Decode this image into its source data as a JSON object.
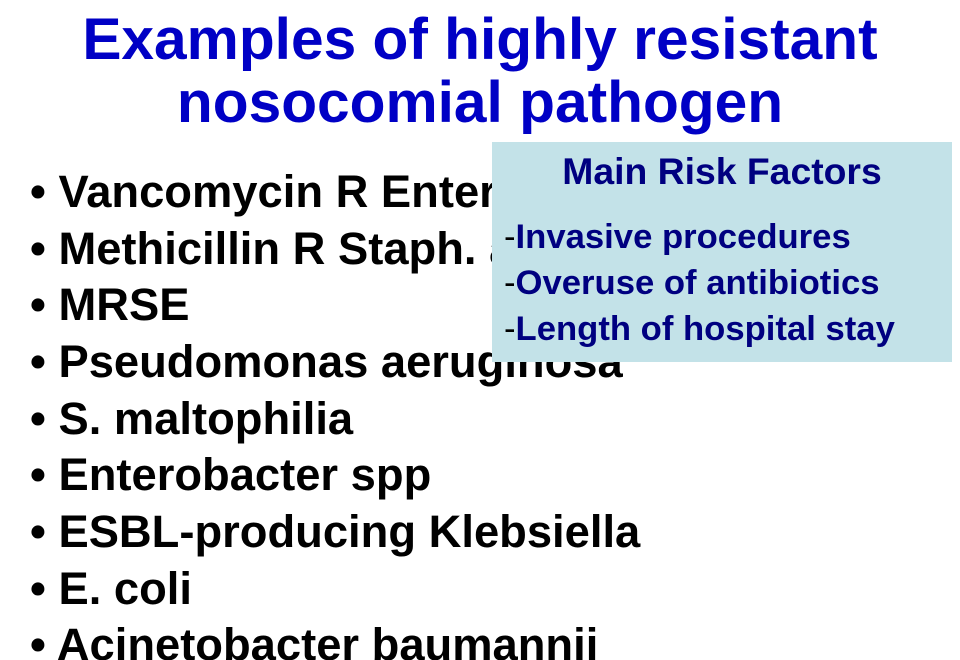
{
  "title": {
    "line1": "Examples of highly resistant",
    "line2": "nosocomial pathogen",
    "color": "#0000c5",
    "fontsize_pt": 44
  },
  "bullets": {
    "items": [
      "Vancomycin R Enterococcus",
      "Methicillin R Staph. aureus",
      "MRSE",
      "Pseudomonas aeruginosa",
      "S. maltophilia",
      "Enterobacter spp",
      "ESBL-producing Klebsiella",
      "E. coli",
      "Acinetobacter baumannii"
    ],
    "color": "#000000",
    "fontsize_pt": 34
  },
  "callout": {
    "background_color": "#c3e2e8",
    "heading": "Main Risk Factors",
    "heading_color": "#000080",
    "heading_fontsize_pt": 28,
    "items": [
      "Invasive procedures",
      "Overuse of antibiotics",
      "Length of hospital stay"
    ],
    "item_color": "#000080",
    "item_fontsize_pt": 26,
    "dash_color": "#000000"
  }
}
